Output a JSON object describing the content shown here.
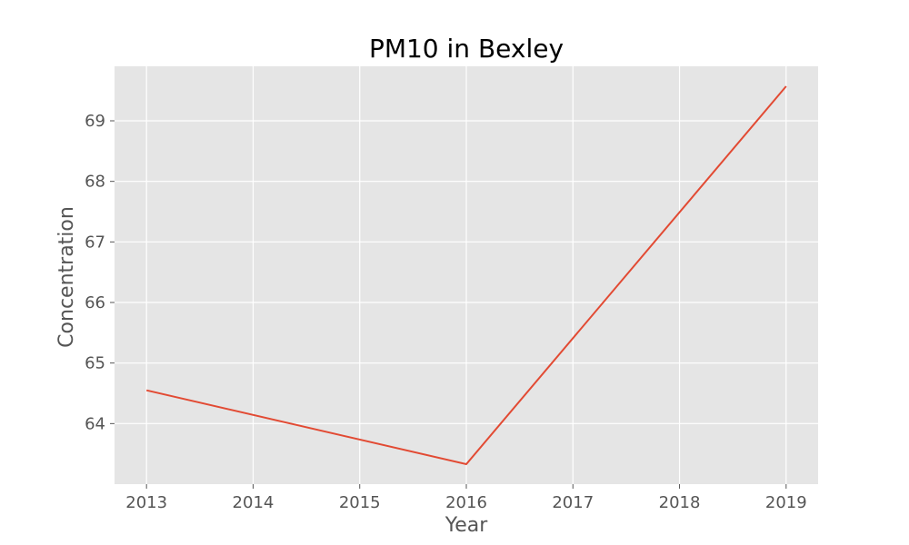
{
  "chart_data": {
    "type": "line",
    "title": "PM10 in Bexley",
    "xlabel": "Year",
    "ylabel": "Concentration",
    "x": [
      2013,
      2016,
      2019
    ],
    "xticks": [
      "2013",
      "2014",
      "2015",
      "2016",
      "2017",
      "2018",
      "2019"
    ],
    "yticks": [
      "64",
      "65",
      "66",
      "67",
      "68",
      "69"
    ],
    "xlim": [
      2012.7,
      2019.3
    ],
    "ylim": [
      63.0,
      69.9
    ],
    "series": [
      {
        "values": [
          64.55,
          63.33,
          69.57
        ],
        "color": "#E24A33"
      }
    ],
    "grid": true,
    "style": {
      "background": "#E5E5E5",
      "grid_color": "#FFFFFF"
    }
  }
}
